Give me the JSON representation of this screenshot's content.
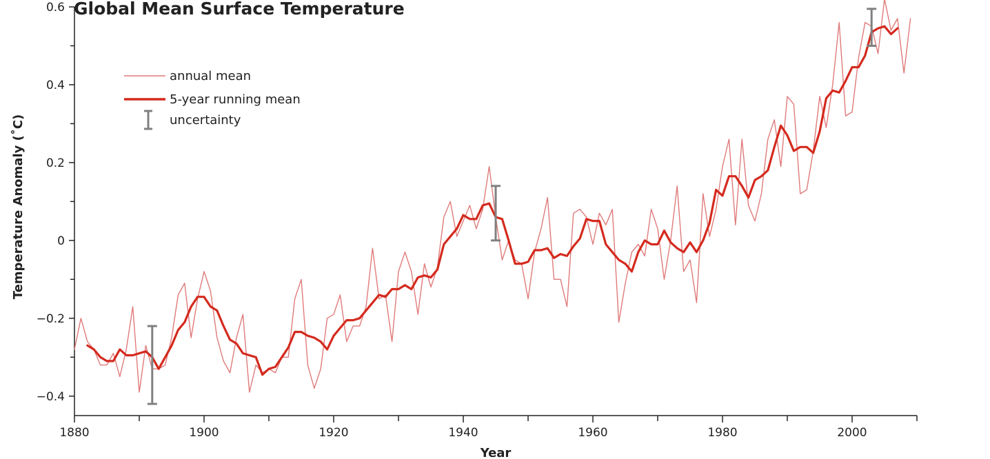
{
  "chart_data": {
    "type": "line",
    "title": "Global Mean Surface Temperature",
    "xlabel": "Year",
    "ylabel": "Temperature Anomaly (˚C)",
    "xlim": [
      1880,
      2010
    ],
    "ylim": [
      -0.45,
      0.6
    ],
    "x_ticks": [
      1880,
      1900,
      1920,
      1940,
      1960,
      1980,
      2000
    ],
    "x_tick_labels": [
      "1880",
      "1900",
      "1920",
      "1940",
      "1960",
      "1980",
      "2000"
    ],
    "y_ticks": [
      -0.4,
      -0.2,
      0,
      0.2,
      0.4,
      0.6
    ],
    "y_tick_labels": [
      "−0.4",
      "−0.2",
      "0",
      "0.2",
      "0.4",
      "0.6"
    ],
    "grid": false,
    "legend_position": "top-left",
    "colors": {
      "annual": "#e07a7a",
      "running": "#d42a1e",
      "uncertainty": "#808080"
    },
    "series": [
      {
        "name": "annual mean",
        "x": [
          1880,
          1881,
          1882,
          1883,
          1884,
          1885,
          1886,
          1887,
          1888,
          1889,
          1890,
          1891,
          1892,
          1893,
          1894,
          1895,
          1896,
          1897,
          1898,
          1899,
          1900,
          1901,
          1902,
          1903,
          1904,
          1905,
          1906,
          1907,
          1908,
          1909,
          1910,
          1911,
          1912,
          1913,
          1914,
          1915,
          1916,
          1917,
          1918,
          1919,
          1920,
          1921,
          1922,
          1923,
          1924,
          1925,
          1926,
          1927,
          1928,
          1929,
          1930,
          1931,
          1932,
          1933,
          1934,
          1935,
          1936,
          1937,
          1938,
          1939,
          1940,
          1941,
          1942,
          1943,
          1944,
          1945,
          1946,
          1947,
          1948,
          1949,
          1950,
          1951,
          1952,
          1953,
          1954,
          1955,
          1956,
          1957,
          1958,
          1959,
          1960,
          1961,
          1962,
          1963,
          1964,
          1965,
          1966,
          1967,
          1968,
          1969,
          1970,
          1971,
          1972,
          1973,
          1974,
          1975,
          1976,
          1977,
          1978,
          1979,
          1980,
          1981,
          1982,
          1983,
          1984,
          1985,
          1986,
          1987,
          1988,
          1989,
          1990,
          1991,
          1992,
          1993,
          1994,
          1995,
          1996,
          1997,
          1998,
          1999,
          2000,
          2001,
          2002,
          2003,
          2004,
          2005,
          2006,
          2007,
          2008,
          2009
        ],
        "y": [
          -0.28,
          -0.2,
          -0.26,
          -0.28,
          -0.32,
          -0.32,
          -0.29,
          -0.35,
          -0.28,
          -0.17,
          -0.39,
          -0.27,
          -0.33,
          -0.33,
          -0.32,
          -0.25,
          -0.14,
          -0.11,
          -0.25,
          -0.15,
          -0.08,
          -0.13,
          -0.25,
          -0.31,
          -0.34,
          -0.25,
          -0.19,
          -0.39,
          -0.32,
          -0.34,
          -0.33,
          -0.34,
          -0.3,
          -0.3,
          -0.15,
          -0.1,
          -0.32,
          -0.38,
          -0.33,
          -0.2,
          -0.19,
          -0.14,
          -0.26,
          -0.22,
          -0.22,
          -0.17,
          -0.02,
          -0.15,
          -0.14,
          -0.26,
          -0.08,
          -0.03,
          -0.08,
          -0.19,
          -0.06,
          -0.12,
          -0.07,
          0.06,
          0.1,
          0.01,
          0.05,
          0.09,
          0.03,
          0.08,
          0.19,
          0.06,
          -0.05,
          0.0,
          -0.05,
          -0.06,
          -0.15,
          -0.03,
          0.03,
          0.11,
          -0.1,
          -0.1,
          -0.17,
          0.07,
          0.08,
          0.06,
          -0.01,
          0.07,
          0.04,
          0.08,
          -0.21,
          -0.11,
          -0.03,
          -0.01,
          -0.04,
          0.08,
          0.03,
          -0.1,
          0.0,
          0.14,
          -0.08,
          -0.05,
          -0.16,
          0.12,
          0.01,
          0.08,
          0.19,
          0.26,
          0.04,
          0.26,
          0.09,
          0.05,
          0.12,
          0.26,
          0.31,
          0.19,
          0.37,
          0.35,
          0.12,
          0.13,
          0.23,
          0.37,
          0.29,
          0.4,
          0.56,
          0.32,
          0.33,
          0.47,
          0.56,
          0.55,
          0.48,
          0.62,
          0.54,
          0.57,
          0.43,
          0.57
        ]
      },
      {
        "name": "5-year running mean",
        "x": [
          1882,
          1883,
          1884,
          1885,
          1886,
          1887,
          1888,
          1889,
          1890,
          1891,
          1892,
          1893,
          1894,
          1895,
          1896,
          1897,
          1898,
          1899,
          1900,
          1901,
          1902,
          1903,
          1904,
          1905,
          1906,
          1907,
          1908,
          1909,
          1910,
          1911,
          1912,
          1913,
          1914,
          1915,
          1916,
          1917,
          1918,
          1919,
          1920,
          1921,
          1922,
          1923,
          1924,
          1925,
          1926,
          1927,
          1928,
          1929,
          1930,
          1931,
          1932,
          1933,
          1934,
          1935,
          1936,
          1937,
          1938,
          1939,
          1940,
          1941,
          1942,
          1943,
          1944,
          1945,
          1946,
          1947,
          1948,
          1949,
          1950,
          1951,
          1952,
          1953,
          1954,
          1955,
          1956,
          1957,
          1958,
          1959,
          1960,
          1961,
          1962,
          1963,
          1964,
          1965,
          1966,
          1967,
          1968,
          1969,
          1970,
          1971,
          1972,
          1973,
          1974,
          1975,
          1976,
          1977,
          1978,
          1979,
          1980,
          1981,
          1982,
          1983,
          1984,
          1985,
          1986,
          1987,
          1988,
          1989,
          1990,
          1991,
          1992,
          1993,
          1994,
          1995,
          1996,
          1997,
          1998,
          1999,
          2000,
          2001,
          2002,
          2003,
          2004,
          2005,
          2006,
          2007
        ],
        "y": [
          -0.27,
          -0.28,
          -0.3,
          -0.31,
          -0.31,
          -0.28,
          -0.295,
          -0.295,
          -0.29,
          -0.285,
          -0.3,
          -0.33,
          -0.3,
          -0.27,
          -0.23,
          -0.21,
          -0.17,
          -0.145,
          -0.145,
          -0.17,
          -0.18,
          -0.22,
          -0.255,
          -0.265,
          -0.29,
          -0.295,
          -0.3,
          -0.345,
          -0.33,
          -0.325,
          -0.3,
          -0.275,
          -0.235,
          -0.235,
          -0.245,
          -0.25,
          -0.26,
          -0.28,
          -0.245,
          -0.225,
          -0.205,
          -0.205,
          -0.2,
          -0.18,
          -0.16,
          -0.14,
          -0.145,
          -0.125,
          -0.125,
          -0.115,
          -0.125,
          -0.095,
          -0.09,
          -0.095,
          -0.075,
          -0.01,
          0.01,
          0.03,
          0.065,
          0.055,
          0.055,
          0.09,
          0.095,
          0.06,
          0.055,
          0.0,
          -0.06,
          -0.06,
          -0.055,
          -0.025,
          -0.025,
          -0.02,
          -0.045,
          -0.035,
          -0.04,
          -0.015,
          0.005,
          0.055,
          0.05,
          0.05,
          -0.01,
          -0.03,
          -0.05,
          -0.06,
          -0.08,
          -0.03,
          0.0,
          -0.01,
          -0.01,
          0.025,
          -0.005,
          -0.02,
          -0.03,
          -0.005,
          -0.03,
          0.0,
          0.045,
          0.13,
          0.115,
          0.165,
          0.165,
          0.14,
          0.11,
          0.155,
          0.165,
          0.18,
          0.24,
          0.295,
          0.27,
          0.23,
          0.24,
          0.24,
          0.225,
          0.28,
          0.365,
          0.385,
          0.38,
          0.41,
          0.445,
          0.445,
          0.475,
          0.535,
          0.545,
          0.55,
          0.53,
          0.545
        ]
      }
    ],
    "uncertainty": {
      "name": "uncertainty",
      "bars": [
        {
          "x": 1892,
          "low": -0.42,
          "high": -0.22
        },
        {
          "x": 1945,
          "low": 0.0,
          "high": 0.14
        },
        {
          "x": 2003,
          "low": 0.5,
          "high": 0.595
        }
      ]
    }
  }
}
